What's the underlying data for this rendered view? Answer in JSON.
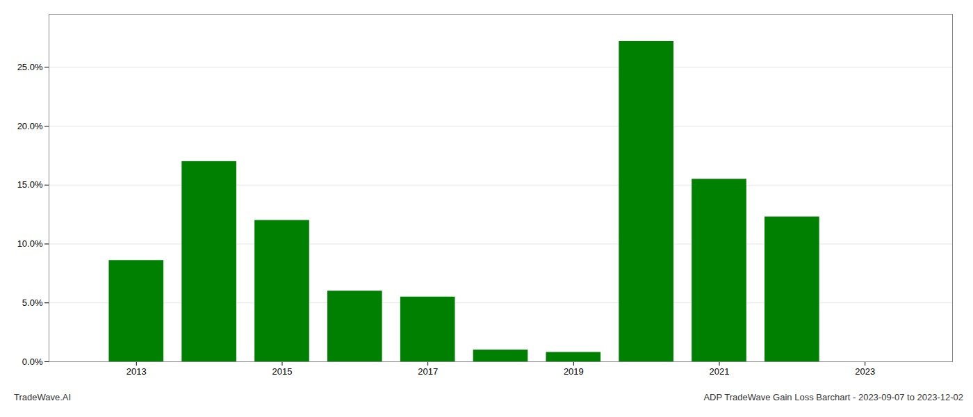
{
  "chart_data": {
    "type": "bar",
    "x": [
      2013,
      2014,
      2015,
      2016,
      2017,
      2018,
      2019,
      2020,
      2021,
      2022,
      2023
    ],
    "values": [
      0.086,
      0.17,
      0.12,
      0.06,
      0.055,
      0.01,
      0.008,
      0.272,
      0.155,
      0.123,
      0.0
    ],
    "color": "#008000",
    "xlim": [
      2011.8,
      2024.2
    ],
    "xticks": [
      2013,
      2015,
      2017,
      2019,
      2021,
      2023
    ],
    "ylim": [
      0.0,
      0.295
    ],
    "yticks": [
      {
        "value": 0.0,
        "label": "0.0%"
      },
      {
        "value": 0.05,
        "label": "5.0%"
      },
      {
        "value": 0.1,
        "label": "10.0%"
      },
      {
        "value": 0.15,
        "label": "15.0%"
      },
      {
        "value": 0.2,
        "label": "20.0%"
      },
      {
        "value": 0.25,
        "label": "25.0%"
      }
    ],
    "grid": true,
    "annotations": [
      "TradeWave.AI",
      "ADP TradeWave Gain Loss Barchart - 2023-09-07 to 2023-12-02"
    ]
  }
}
